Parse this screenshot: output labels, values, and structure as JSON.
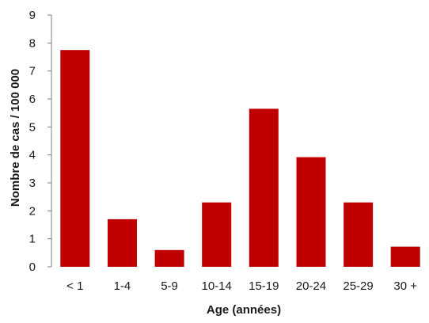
{
  "chart_data": {
    "type": "bar",
    "categories": [
      "< 1",
      "1-4",
      "5-9",
      "10-14",
      "15-19",
      "20-24",
      "25-29",
      "30 +"
    ],
    "values": [
      7.75,
      1.7,
      0.6,
      2.3,
      5.65,
      3.92,
      2.3,
      0.72
    ],
    "xlabel": "Age (années)",
    "ylabel": "Nombre de cas / 100 000",
    "ylim": [
      0,
      9
    ],
    "yticks": [
      0,
      1,
      2,
      3,
      4,
      5,
      6,
      7,
      8,
      9
    ],
    "bar_color": "#c00000",
    "grid": false,
    "legend": false
  }
}
